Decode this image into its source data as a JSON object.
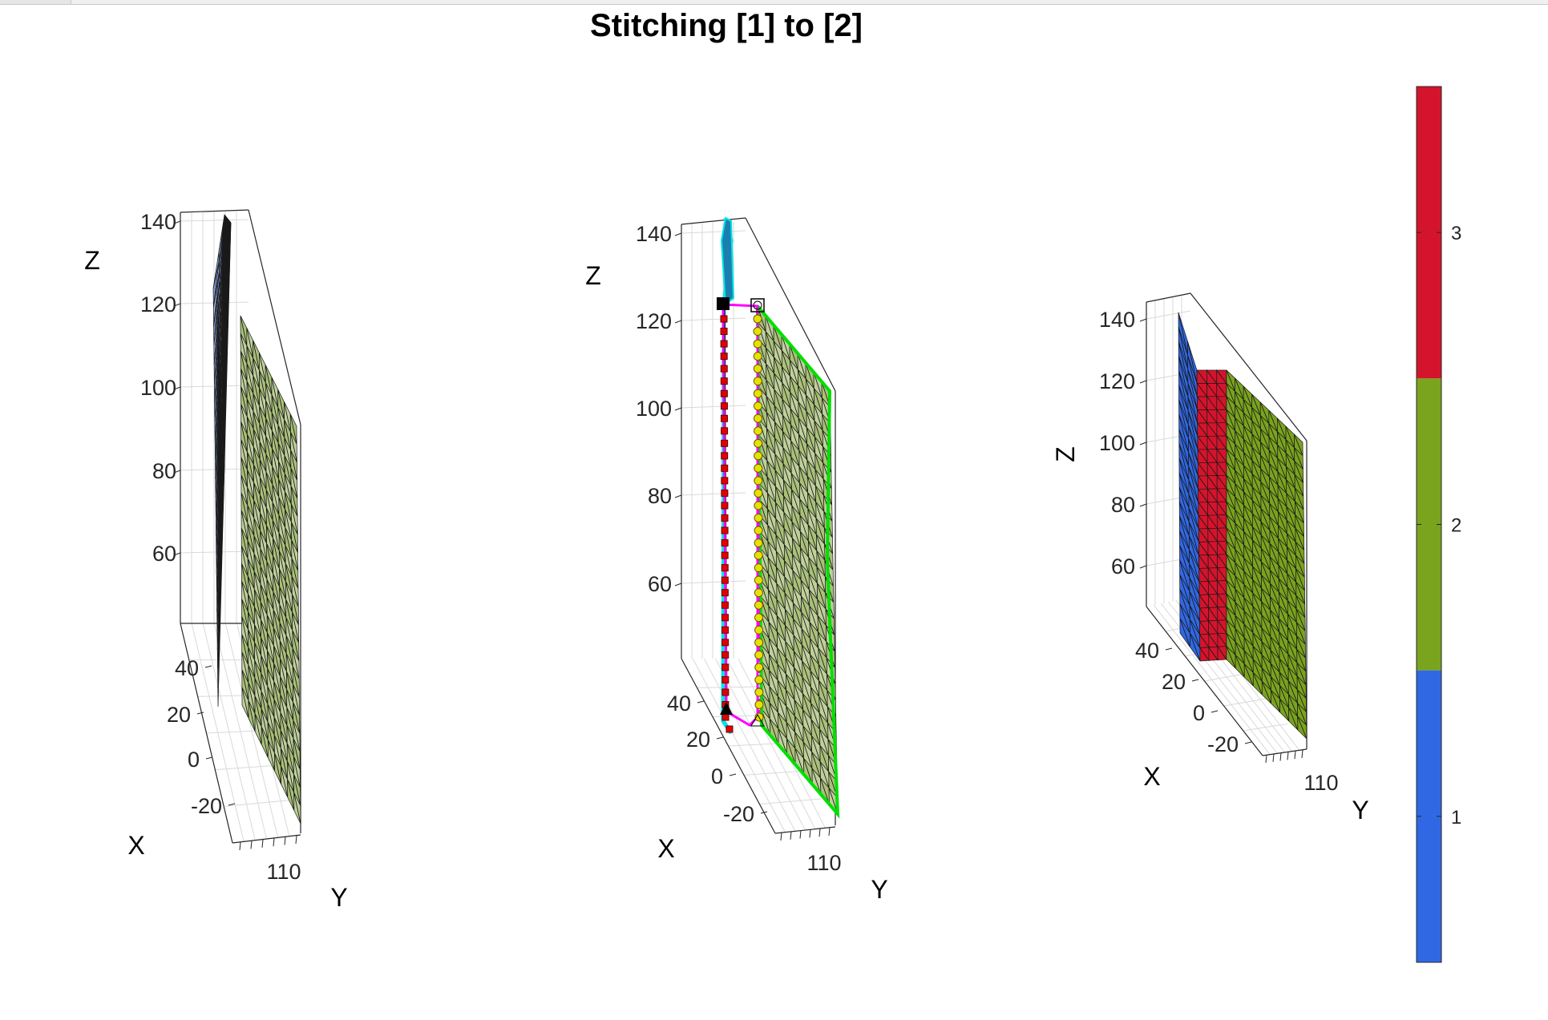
{
  "title": "Stitching [1] to [2]",
  "chart_data": [
    {
      "type": "surface-3d",
      "panel": "left",
      "xlabel": "X",
      "ylabel": "Y",
      "zlabel": "Z",
      "x_ticks": [
        "40",
        "20",
        "0",
        "-20"
      ],
      "y_ticks": [
        "110"
      ],
      "z_ticks": [
        "140",
        "120",
        "100",
        "80",
        "60"
      ],
      "series": [
        {
          "name": "1",
          "color": "#2f62de"
        },
        {
          "name": "2",
          "color": "#7fa126"
        }
      ]
    },
    {
      "type": "surface-3d",
      "panel": "middle",
      "xlabel": "X",
      "ylabel": "Y",
      "zlabel": "Z",
      "x_ticks": [
        "40",
        "20",
        "0",
        "-20"
      ],
      "y_ticks": [
        "110"
      ],
      "z_ticks": [
        "140",
        "120",
        "100",
        "80",
        "60"
      ],
      "overlays": {
        "boundary_1_color": "#00e5e5",
        "boundary_2_color": "#00e000",
        "stitch_path_color": "#ff00ff",
        "marker_square_color": "#e00000",
        "marker_circle_color": "#e8e000",
        "boundary_marker_count": 33
      }
    },
    {
      "type": "surface-3d",
      "panel": "right",
      "xlabel": "X",
      "ylabel": "Y",
      "zlabel": "Z",
      "x_ticks": [
        "40",
        "20",
        "0",
        "-20"
      ],
      "y_ticks": [
        "110"
      ],
      "z_ticks": [
        "140",
        "120",
        "100",
        "80",
        "60"
      ],
      "series": [
        {
          "name": "1",
          "color": "#3068e4"
        },
        {
          "name": "3",
          "color": "#d4142c"
        },
        {
          "name": "2",
          "color": "#7aa31e"
        }
      ]
    }
  ],
  "colorbar": {
    "ticks": [
      "3",
      "2",
      "1"
    ],
    "colors": [
      "#d4142c",
      "#7aa31e",
      "#3068e4"
    ]
  }
}
